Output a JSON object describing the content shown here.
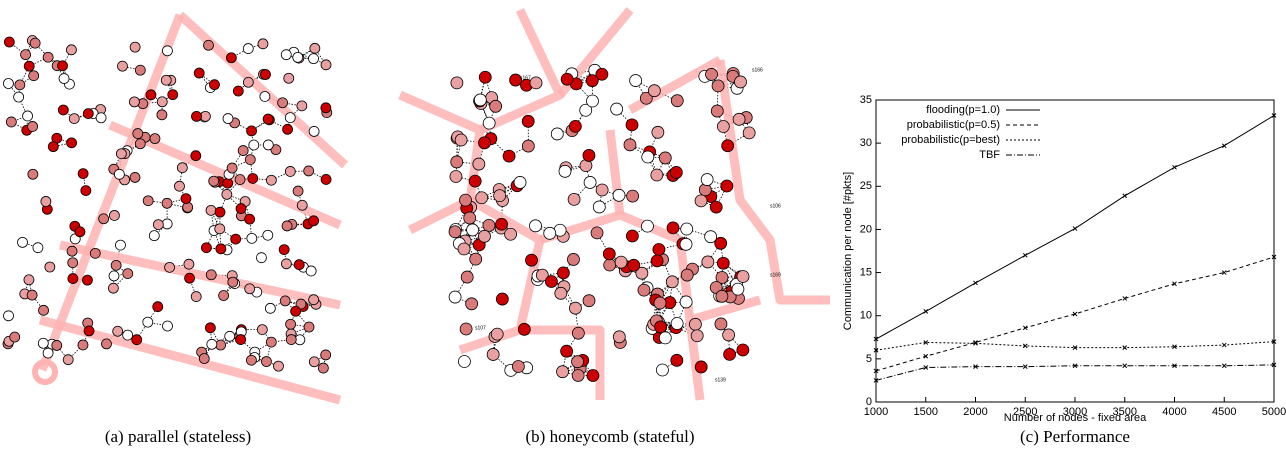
{
  "captions": [
    "(a) parallel (stateless)",
    "(b) honeycomb (stateful)",
    "(c) Performance"
  ],
  "node_labels": [
    "s167",
    "s166",
    "s106",
    "s169",
    "s139",
    "s107"
  ],
  "chart_data": {
    "type": "line",
    "x_label": "Number of nodes - fixed area",
    "y_label": "Communication per node [#pkts]",
    "x": [
      1000,
      1500,
      2000,
      2500,
      3000,
      3500,
      4000,
      4500,
      5000
    ],
    "series": [
      {
        "name": "flooding(p=1.0)",
        "color": "#000000",
        "dash": "none",
        "values": [
          7.3,
          10.5,
          13.8,
          17.0,
          20.1,
          23.9,
          27.2,
          29.7,
          33.2
        ]
      },
      {
        "name": "probabilistic(p=0.5)",
        "color": "#000000",
        "dash": "4 3",
        "values": [
          3.6,
          5.3,
          6.9,
          8.6,
          10.2,
          12.0,
          13.7,
          15.0,
          16.8
        ]
      },
      {
        "name": "probabilistic(p=best)",
        "color": "#000000",
        "dash": "2 2",
        "values": [
          6.0,
          6.9,
          6.8,
          6.5,
          6.3,
          6.3,
          6.4,
          6.6,
          7.0
        ]
      },
      {
        "name": "TBF",
        "color": "#000000",
        "dash": "6 2 1 2",
        "values": [
          2.5,
          4.0,
          4.1,
          4.1,
          4.2,
          4.2,
          4.2,
          4.2,
          4.3
        ]
      }
    ],
    "xlim": [
      1000,
      5000
    ],
    "xticks": [
      1000,
      1500,
      2000,
      2500,
      3000,
      3500,
      4000,
      4500,
      5000
    ],
    "ylim": [
      0,
      35
    ],
    "yticks": [
      0,
      5,
      10,
      15,
      20,
      25,
      30,
      35
    ],
    "legend": "upper-left"
  }
}
